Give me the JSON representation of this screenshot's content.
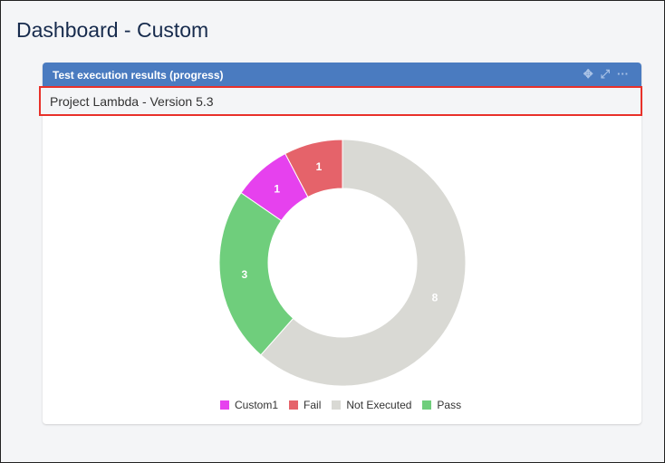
{
  "page_title": "Dashboard - Custom",
  "panel": {
    "title": "Test execution results (progress)",
    "subtitle": "Project Lambda - Version 5.3",
    "icons": [
      "move-icon",
      "expand-icon",
      "more-icon"
    ]
  },
  "chart_data": {
    "type": "pie",
    "donut": true,
    "categories": [
      "Not Executed",
      "Pass",
      "Custom1",
      "Fail"
    ],
    "values": [
      8,
      3,
      1,
      1
    ],
    "colors": [
      "#d9d9d4",
      "#6fce7c",
      "#e641ee",
      "#e5636a"
    ],
    "legend": {
      "position": "bottom",
      "items": [
        "Custom1",
        "Fail",
        "Not Executed",
        "Pass"
      ],
      "colors": [
        "#e641ee",
        "#e5636a",
        "#d9d9d4",
        "#6fce7c"
      ]
    }
  }
}
